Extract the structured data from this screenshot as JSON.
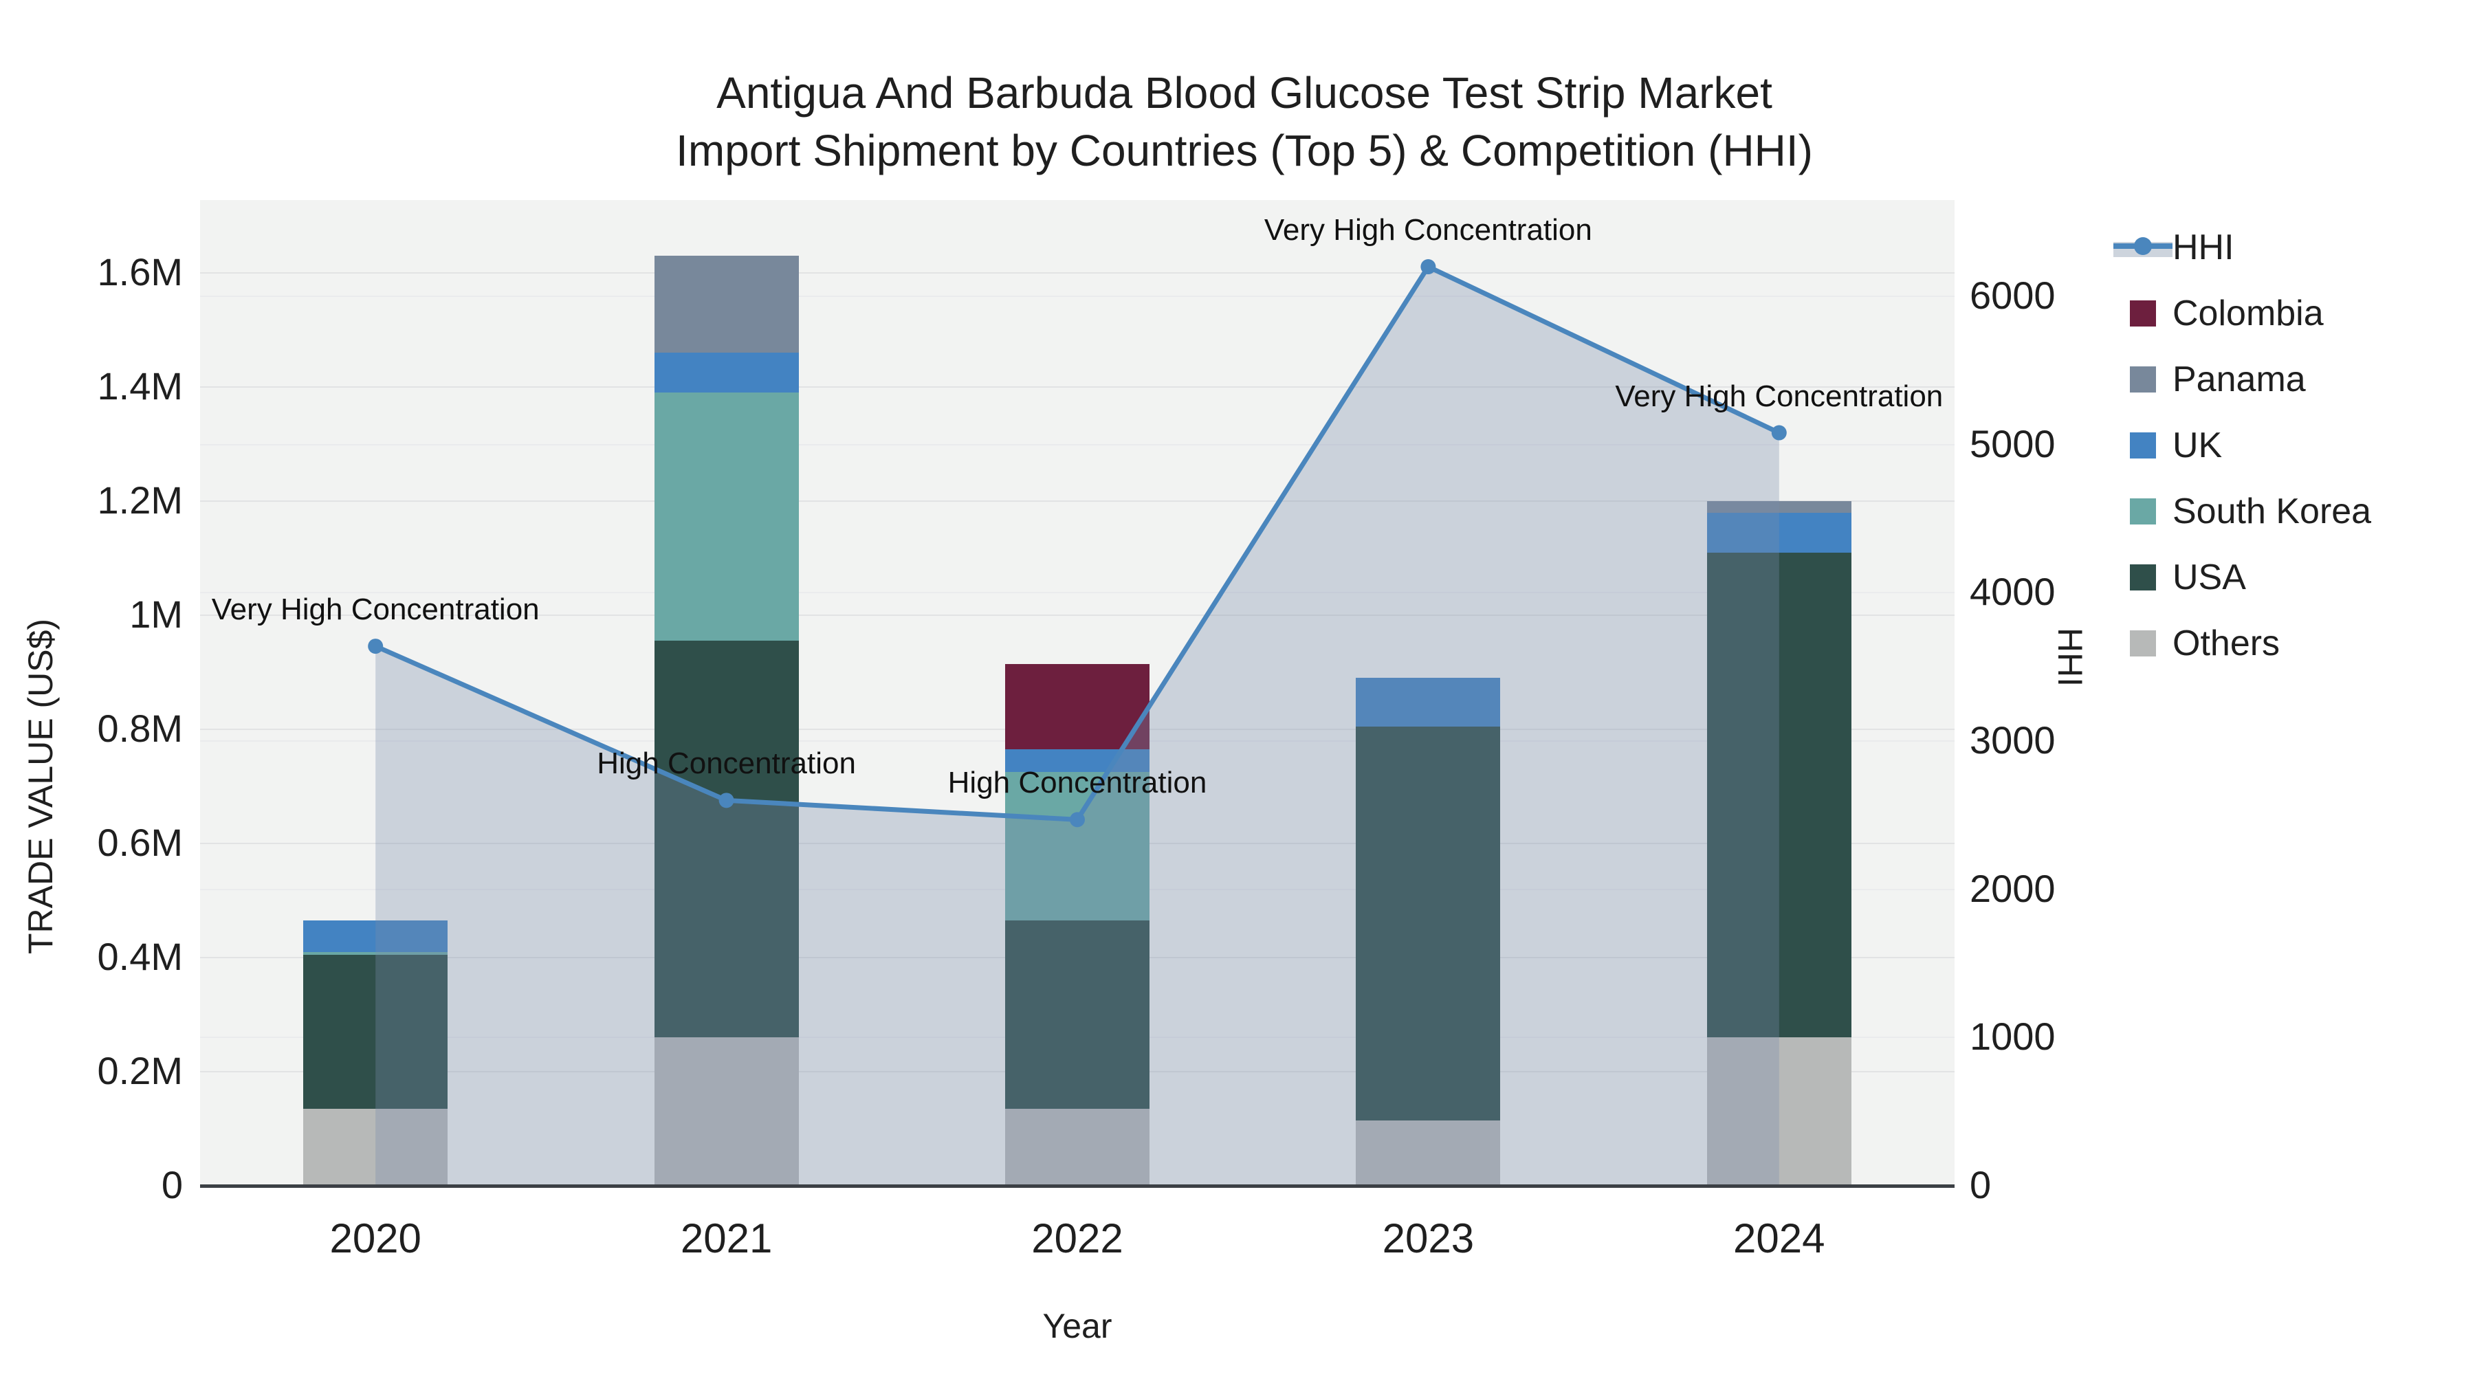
{
  "title": {
    "line1": "Antigua And Barbuda Blood Glucose Test Strip Market",
    "line2": "Import Shipment by Countries (Top 5) & Competition (HHI)"
  },
  "colors": {
    "background": "#ffffff",
    "plot_background": "#f2f3f2",
    "grid_left": "#e2e3e4",
    "grid_right": "#eaebed",
    "axis_line": "#3c4045",
    "text": "#1f1f1f",
    "hhi_line": "#4a86bd",
    "hhi_fill": "rgba(120,140,170,0.32)"
  },
  "legend": {
    "items": [
      {
        "id": "hhi",
        "label": "HHI",
        "type": "line",
        "color": "#4a86bd"
      },
      {
        "id": "colombia",
        "label": "Colombia",
        "type": "swatch",
        "color": "#6d1f3e"
      },
      {
        "id": "panama",
        "label": "Panama",
        "type": "swatch",
        "color": "#78889b"
      },
      {
        "id": "uk",
        "label": "UK",
        "type": "swatch",
        "color": "#4383c2"
      },
      {
        "id": "south-korea",
        "label": "South Korea",
        "type": "swatch",
        "color": "#6aa8a5"
      },
      {
        "id": "usa",
        "label": "USA",
        "type": "swatch",
        "color": "#2f4f4a"
      },
      {
        "id": "others",
        "label": "Others",
        "type": "swatch",
        "color": "#b7b9b8"
      }
    ]
  },
  "chart_data": {
    "type": "bar+line",
    "x_title": "Year",
    "categories": [
      "2020",
      "2021",
      "2022",
      "2023",
      "2024"
    ],
    "bar_unit": "US$ millions",
    "stack_series": [
      {
        "name": "Others",
        "color": "#b7b9b8",
        "values": [
          0.135,
          0.26,
          0.135,
          0.115,
          0.26
        ]
      },
      {
        "name": "USA",
        "color": "#2f4f4a",
        "values": [
          0.27,
          0.695,
          0.33,
          0.69,
          0.85
        ]
      },
      {
        "name": "South Korea",
        "color": "#6aa8a5",
        "values": [
          0.005,
          0.435,
          0.26,
          0,
          0
        ]
      },
      {
        "name": "UK",
        "color": "#4383c2",
        "values": [
          0.055,
          0.07,
          0.04,
          0.085,
          0.07
        ]
      },
      {
        "name": "Colombia",
        "color": "#6d1f3e",
        "values": [
          0,
          0,
          0.15,
          0,
          0
        ]
      },
      {
        "name": "Panama",
        "color": "#78889b",
        "values": [
          0,
          0.17,
          0,
          0,
          0.02
        ]
      }
    ],
    "bar_totals": [
      0.465,
      1.63,
      0.915,
      0.89,
      1.2
    ],
    "line_series": {
      "name": "HHI",
      "values": [
        3640,
        2600,
        2470,
        6200,
        5080
      ]
    },
    "annotations": [
      "Very High Concentration",
      "High Concentration",
      "High Concentration",
      "Very High Concentration",
      "Very High Concentration"
    ],
    "y_left": {
      "title": "TRADE VALUE (US$)",
      "tick_values": [
        0,
        0.2,
        0.4,
        0.6,
        0.8,
        1.0,
        1.2,
        1.4,
        1.6
      ],
      "tick_labels": [
        "0",
        "0.2M",
        "0.4M",
        "0.6M",
        "0.8M",
        "1M",
        "1.2M",
        "1.4M",
        "1.6M"
      ],
      "range": [
        0,
        1.728
      ]
    },
    "y_right": {
      "title": "HHI",
      "tick_values": [
        0,
        1000,
        2000,
        3000,
        4000,
        5000,
        6000
      ],
      "tick_labels": [
        "0",
        "1000",
        "2000",
        "3000",
        "4000",
        "5000",
        "6000"
      ],
      "range": [
        0,
        6650
      ]
    },
    "legend_position": "right",
    "grid": true
  }
}
